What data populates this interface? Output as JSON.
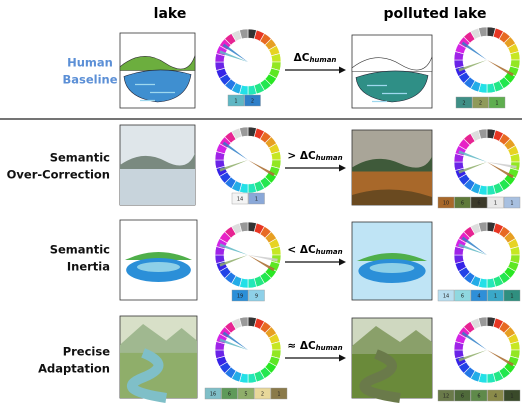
{
  "header": {
    "left": "lake",
    "right": "polluted lake"
  },
  "rows": [
    {
      "label": [
        "Human",
        "Baseline"
      ],
      "arrow": {
        "prefix": "",
        "main": "ΔC",
        "sub": "human"
      },
      "left_swatches": [
        {
          "label": "1",
          "color": "#5fb7c4"
        },
        {
          "label": "2",
          "color": "#2f7fc8"
        }
      ],
      "right_swatches": [
        {
          "label": "2",
          "color": "#3f8f86"
        },
        {
          "label": "2",
          "color": "#8f9a5a"
        },
        {
          "label": "1",
          "color": "#5fae4f"
        }
      ]
    },
    {
      "label": [
        "Semantic",
        "Over-Correction"
      ],
      "arrow": {
        "prefix": "> ",
        "main": "ΔC",
        "sub": "human"
      },
      "left_swatches": [
        {
          "label": "14",
          "color": "#f4f4f4"
        },
        {
          "label": "1",
          "color": "#8aa8d8"
        }
      ],
      "right_swatches": [
        {
          "label": "10",
          "color": "#a8682a"
        },
        {
          "label": "6",
          "color": "#5f7a3a"
        },
        {
          "label": "6",
          "color": "#3c3a2a"
        },
        {
          "label": "1",
          "color": "#e8e8e8"
        },
        {
          "label": "1",
          "color": "#a8c0e0"
        }
      ]
    },
    {
      "label": [
        "Semantic",
        "Inertia"
      ],
      "arrow": {
        "prefix": "< ",
        "main": "ΔC",
        "sub": "human"
      },
      "left_swatches": [
        {
          "label": "19",
          "color": "#2b8fd8"
        },
        {
          "label": "9",
          "color": "#8ed0e8"
        }
      ],
      "right_swatches": [
        {
          "label": "14",
          "color": "#b8def0"
        },
        {
          "label": "6",
          "color": "#8fd8e0"
        },
        {
          "label": "4",
          "color": "#2f8fd8"
        },
        {
          "label": "1",
          "color": "#3aa8c8"
        },
        {
          "label": "1",
          "color": "#2f8f7f"
        }
      ]
    },
    {
      "label": [
        "Precise",
        "Adaptation"
      ],
      "arrow": {
        "prefix": "≈ ",
        "main": "ΔC",
        "sub": "human"
      },
      "left_swatches": [
        {
          "label": "16",
          "color": "#7fbfc8"
        },
        {
          "label": "6",
          "color": "#5f9a5a"
        },
        {
          "label": "5",
          "color": "#8fae6a"
        },
        {
          "label": "2",
          "color": "#e8d89a"
        },
        {
          "label": "1",
          "color": "#8a7a4a"
        }
      ],
      "right_swatches": [
        {
          "label": "12",
          "color": "#6a7a4a"
        },
        {
          "label": "6",
          "color": "#4f6a3a"
        },
        {
          "label": "6",
          "color": "#5f8a4a"
        },
        {
          "label": "4",
          "color": "#8a8a4a"
        },
        {
          "label": "1",
          "color": "#3a4a2a"
        }
      ]
    }
  ]
}
